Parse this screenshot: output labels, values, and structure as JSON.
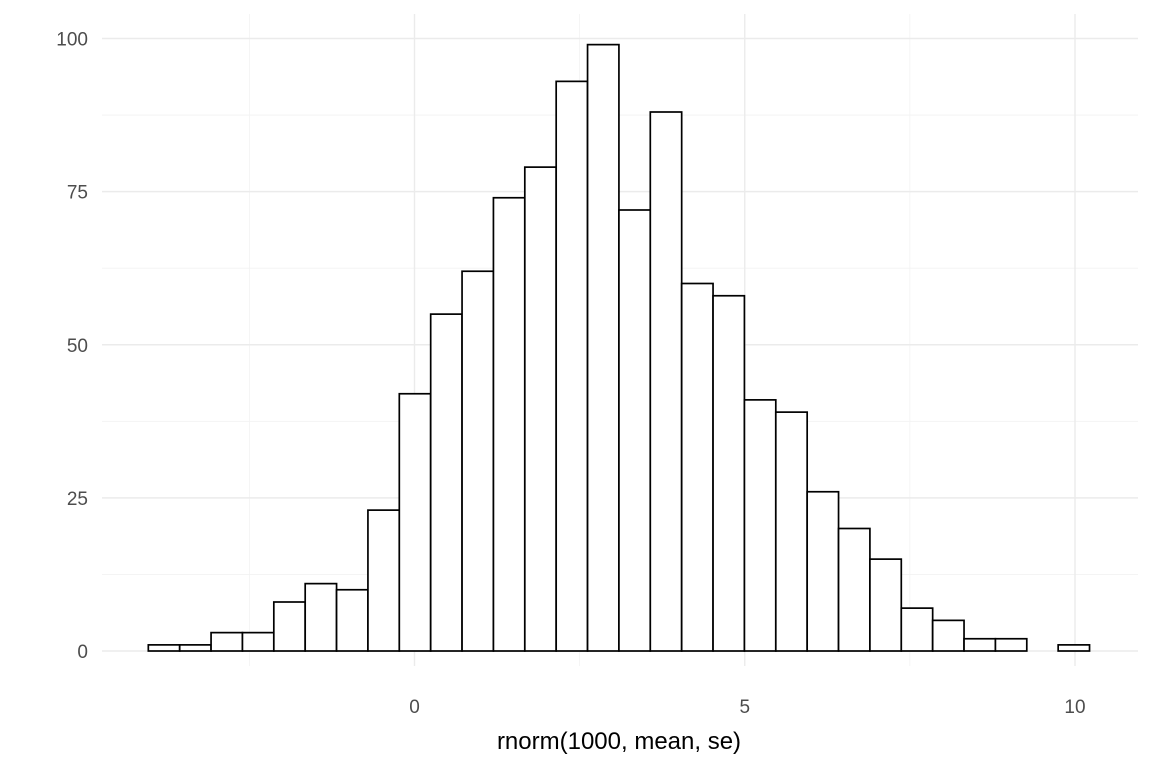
{
  "chart_data": {
    "type": "bar",
    "subtype": "histogram",
    "xlabel": "rnorm(1000, mean, se)",
    "ylabel": "",
    "title": "",
    "xlim": [
      -4.5,
      10.5
    ],
    "ylim": [
      0,
      100
    ],
    "x_ticks": [
      0,
      5,
      10
    ],
    "x_tick_labels": [
      "0",
      "5",
      "10"
    ],
    "y_ticks": [
      0,
      25,
      50,
      75,
      100
    ],
    "y_tick_labels": [
      "0",
      "25",
      "50",
      "75",
      "100"
    ],
    "grid": true,
    "bin_width": 0.475,
    "bins": [
      {
        "x_start": -4.03,
        "x_end": -3.555,
        "count": 1
      },
      {
        "x_start": -3.555,
        "x_end": -3.08,
        "count": 1
      },
      {
        "x_start": -3.08,
        "x_end": -2.605,
        "count": 3
      },
      {
        "x_start": -2.605,
        "x_end": -2.13,
        "count": 3
      },
      {
        "x_start": -2.13,
        "x_end": -1.655,
        "count": 8
      },
      {
        "x_start": -1.655,
        "x_end": -1.18,
        "count": 11
      },
      {
        "x_start": -1.18,
        "x_end": -0.705,
        "count": 10
      },
      {
        "x_start": -0.705,
        "x_end": -0.23,
        "count": 23
      },
      {
        "x_start": -0.23,
        "x_end": 0.245,
        "count": 42
      },
      {
        "x_start": 0.245,
        "x_end": 0.72,
        "count": 55
      },
      {
        "x_start": 0.72,
        "x_end": 1.195,
        "count": 62
      },
      {
        "x_start": 1.195,
        "x_end": 1.67,
        "count": 74
      },
      {
        "x_start": 1.67,
        "x_end": 2.145,
        "count": 79
      },
      {
        "x_start": 2.145,
        "x_end": 2.62,
        "count": 93
      },
      {
        "x_start": 2.62,
        "x_end": 3.095,
        "count": 99
      },
      {
        "x_start": 3.095,
        "x_end": 3.57,
        "count": 72
      },
      {
        "x_start": 3.57,
        "x_end": 4.045,
        "count": 88
      },
      {
        "x_start": 4.045,
        "x_end": 4.52,
        "count": 60
      },
      {
        "x_start": 4.52,
        "x_end": 4.995,
        "count": 58
      },
      {
        "x_start": 4.995,
        "x_end": 5.47,
        "count": 41
      },
      {
        "x_start": 5.47,
        "x_end": 5.945,
        "count": 39
      },
      {
        "x_start": 5.945,
        "x_end": 6.42,
        "count": 26
      },
      {
        "x_start": 6.42,
        "x_end": 6.895,
        "count": 20
      },
      {
        "x_start": 6.895,
        "x_end": 7.37,
        "count": 15
      },
      {
        "x_start": 7.37,
        "x_end": 7.845,
        "count": 7
      },
      {
        "x_start": 7.845,
        "x_end": 8.32,
        "count": 5
      },
      {
        "x_start": 8.32,
        "x_end": 8.795,
        "count": 2
      },
      {
        "x_start": 8.795,
        "x_end": 9.27,
        "count": 2
      },
      {
        "x_start": 9.27,
        "x_end": 9.745,
        "count": 0
      },
      {
        "x_start": 9.745,
        "x_end": 10.22,
        "count": 1
      }
    ]
  },
  "colors": {
    "bar_fill": "#ffffff",
    "bar_outline": "#000000",
    "grid_major": "#ebebeb",
    "grid_minor": "#f2f2f2",
    "tick_text": "#4d4d4d",
    "axis_title_text": "#000000",
    "background": "#ffffff"
  }
}
